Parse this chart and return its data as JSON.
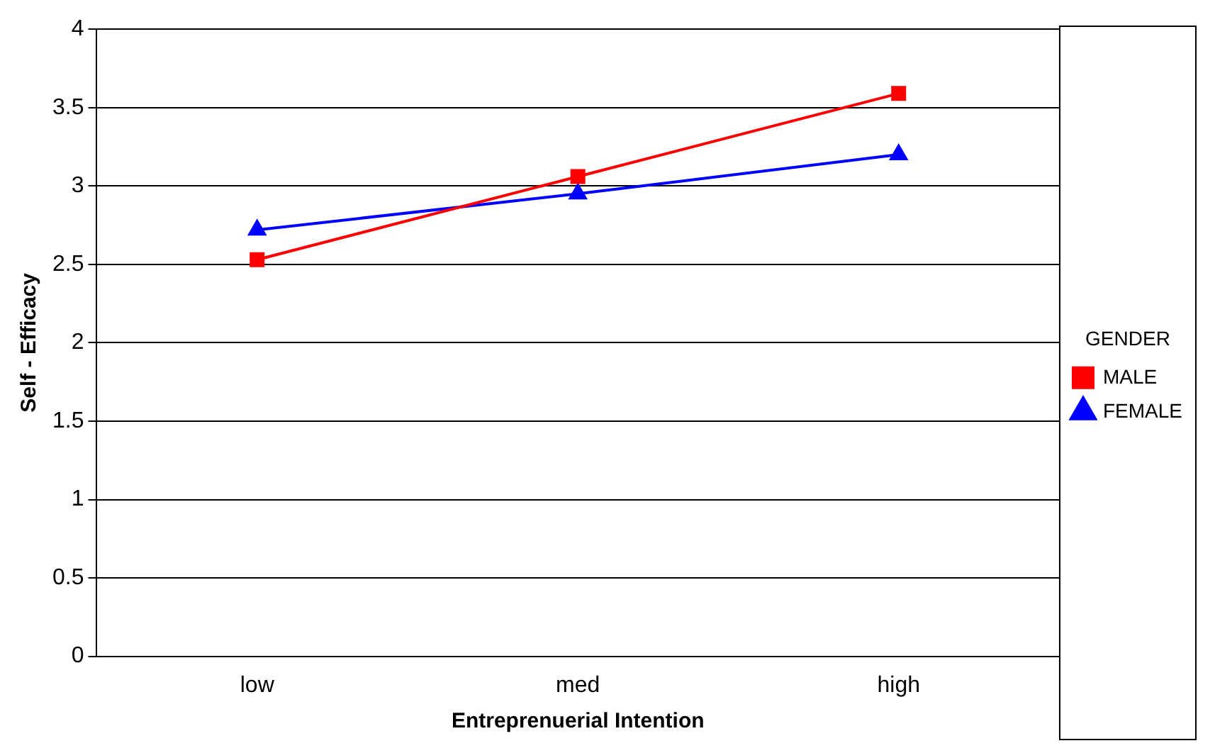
{
  "chart_data": {
    "type": "line",
    "xlabel": "Entreprenuerial Intention",
    "ylabel": "Self - Efficacy",
    "legend_title": "GENDER",
    "categories": [
      "low",
      "med",
      "high"
    ],
    "series": [
      {
        "name": "MALE",
        "color": "#ff0000",
        "marker": "square",
        "values": [
          2.53,
          3.06,
          3.59
        ]
      },
      {
        "name": "FEMALE",
        "color": "#0000ff",
        "marker": "triangle",
        "values": [
          2.72,
          2.95,
          3.2
        ]
      }
    ],
    "ylim": [
      0,
      4
    ],
    "yticks": [
      0,
      0.5,
      1,
      1.5,
      2,
      2.5,
      3,
      3.5,
      4
    ],
    "grid": "y",
    "legend": "right",
    "line_style": "solid"
  }
}
